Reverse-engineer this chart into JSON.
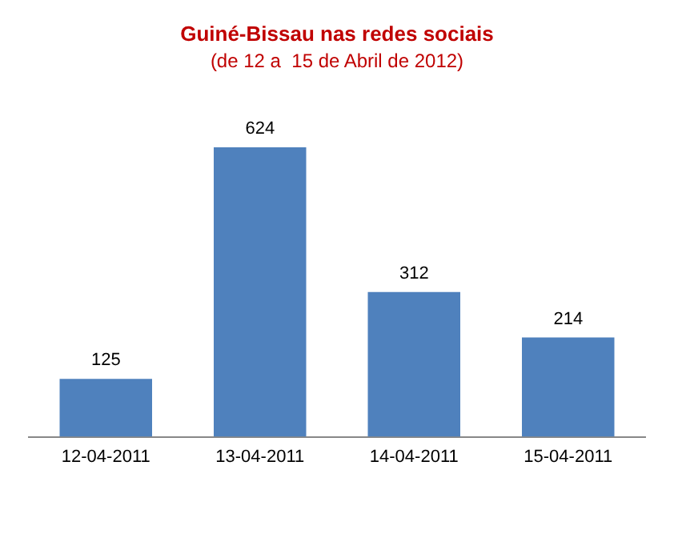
{
  "chart_data": {
    "type": "bar",
    "title": "Guiné-Bissau nas redes sociais",
    "subtitle": "(de 12 a  15 de Abril de 2012)",
    "categories": [
      "12-04-2011",
      "13-04-2011",
      "14-04-2011",
      "15-04-2011"
    ],
    "values": [
      125,
      624,
      312,
      214
    ],
    "color": "#4f81bd",
    "data_labels": true,
    "grid": false,
    "legend": false
  }
}
